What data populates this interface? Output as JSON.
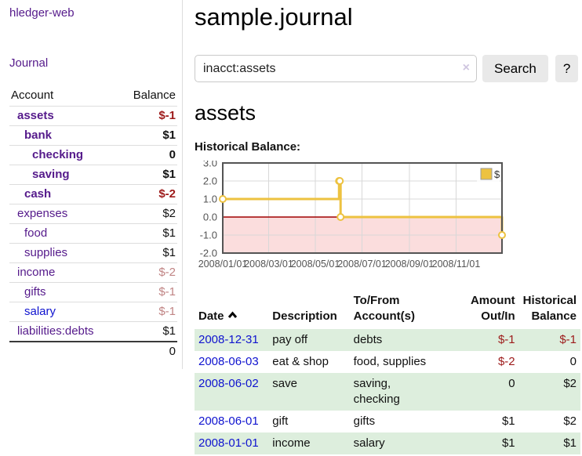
{
  "app": {
    "title": "hledger-web"
  },
  "sidebar": {
    "journal_link": "Journal",
    "table": {
      "account_header": "Account",
      "balance_header": "Balance",
      "rows": [
        {
          "account": "assets",
          "balance": "$-1",
          "indent": 1,
          "bold": true,
          "balance_class": "neg"
        },
        {
          "account": "bank",
          "balance": "$1",
          "indent": 2,
          "bold": true
        },
        {
          "account": "checking",
          "balance": "0",
          "indent": 3,
          "bold": true
        },
        {
          "account": "saving",
          "balance": "$1",
          "indent": 3,
          "bold": true
        },
        {
          "account": "cash",
          "balance": "$-2",
          "indent": 2,
          "bold": true,
          "balance_class": "neg"
        },
        {
          "account": "expenses",
          "balance": "$2",
          "indent": 1
        },
        {
          "account": "food",
          "balance": "$1",
          "indent": 2
        },
        {
          "account": "supplies",
          "balance": "$1",
          "indent": 2
        },
        {
          "account": "income",
          "balance": "$-2",
          "indent": 1,
          "balance_class": "negsoft"
        },
        {
          "account": "gifts",
          "balance": "$-1",
          "indent": 2,
          "balance_class": "negsoft"
        },
        {
          "account": "salary",
          "balance": "$-1",
          "indent": 2,
          "link_class": "blue",
          "balance_class": "negsoft"
        },
        {
          "account": "liabilities:debts",
          "balance": "$1",
          "indent": 1
        }
      ],
      "total": "0"
    }
  },
  "header": {
    "title": "sample.journal"
  },
  "search": {
    "value": "inacct:assets",
    "clear_icon": "×",
    "button": "Search",
    "help_button": "?"
  },
  "account_page": {
    "heading": "assets",
    "chart_label": "Historical Balance:"
  },
  "chart_data": {
    "type": "line",
    "title": "Historical Balance",
    "step": true,
    "series": [
      {
        "name": "$",
        "color": "#edc240",
        "points": [
          [
            "2008-01-01",
            1
          ],
          [
            "2008-06-01",
            2
          ],
          [
            "2008-06-02",
            2
          ],
          [
            "2008-06-03",
            0
          ],
          [
            "2008-12-31",
            -1
          ]
        ]
      }
    ],
    "x_ticks": [
      "2008/01/01",
      "2008/03/01",
      "2008/05/01",
      "2008/07/01",
      "2008/09/01",
      "2008/11/01"
    ],
    "y_ticks": [
      "3.0",
      "2.0",
      "1.0",
      "0.0",
      "-1.0",
      "-2.0"
    ],
    "xlim": [
      "2008-01-01",
      "2008-12-31"
    ],
    "ylim": [
      -2,
      3
    ],
    "grid": true,
    "legend": {
      "label": "$",
      "position": "top-right"
    },
    "negative_fill": "#fbdddd",
    "zero_line_color": "#a00000"
  },
  "register_table": {
    "headers": {
      "date": "Date",
      "sort_icon": "chevron-up-icon",
      "description": "Description",
      "tofrom": "To/From\nAccount(s)",
      "amount": "Amount\nOut/In",
      "balance": "Historical\nBalance"
    },
    "rows": [
      {
        "date": "2008-12-31",
        "description": "pay off",
        "accounts": "debts",
        "amount": "$-1",
        "amount_neg": true,
        "balance": "$-1",
        "balance_neg": true
      },
      {
        "date": "2008-06-03",
        "description": "eat & shop",
        "accounts": "food, supplies",
        "amount": "$-2",
        "amount_neg": true,
        "balance": "0"
      },
      {
        "date": "2008-06-02",
        "description": "save",
        "accounts": "saving,\nchecking",
        "amount": "0",
        "balance": "$2"
      },
      {
        "date": "2008-06-01",
        "description": "gift",
        "accounts": "gifts",
        "amount": "$1",
        "balance": "$2"
      },
      {
        "date": "2008-01-01",
        "description": "income",
        "accounts": "salary",
        "amount": "$1",
        "balance": "$1"
      }
    ]
  },
  "colors": {
    "link_purple": "#551a8b",
    "link_blue": "#0f13cf",
    "negative_strong": "#9d1a1a",
    "negative_soft": "#c08484",
    "row_stripe_green": "#ddeedd",
    "chart_line": "#edc240",
    "chart_negative_fill": "#fbdddd",
    "chart_zero_line": "#a00000",
    "chart_border": "#545454",
    "button_bg": "#e9e9e9"
  }
}
